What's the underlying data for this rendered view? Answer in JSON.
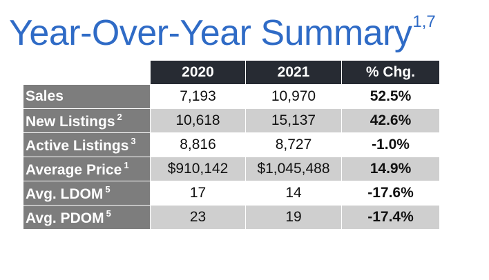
{
  "title": {
    "text": "Year-Over-Year Summary",
    "footnote": "1,7"
  },
  "table": {
    "headers": [
      "2020",
      "2021",
      "% Chg."
    ],
    "rows": [
      {
        "label": "Sales",
        "footnote": "",
        "y2020": "7,193",
        "y2021": "10,970",
        "chg": "52.5%"
      },
      {
        "label": "New Listings",
        "footnote": "2",
        "y2020": "10,618",
        "y2021": "15,137",
        "chg": "42.6%"
      },
      {
        "label": "Active Listings",
        "footnote": "3",
        "y2020": "8,816",
        "y2021": "8,727",
        "chg": "-1.0%"
      },
      {
        "label": "Average Price",
        "footnote": "1",
        "y2020": "$910,142",
        "y2021": "$1,045,488",
        "chg": "14.9%"
      },
      {
        "label": "Avg. LDOM",
        "footnote": "5",
        "y2020": "17",
        "y2021": "14",
        "chg": "-17.6%"
      },
      {
        "label": "Avg. PDOM",
        "footnote": "5",
        "y2020": "23",
        "y2021": "19",
        "chg": "-17.4%"
      }
    ]
  },
  "colors": {
    "title_blue": "#2f6bc6",
    "header_dark": "#272b33",
    "label_gray": "#7d7d7d",
    "stripe_gray": "#cfcfcf"
  }
}
